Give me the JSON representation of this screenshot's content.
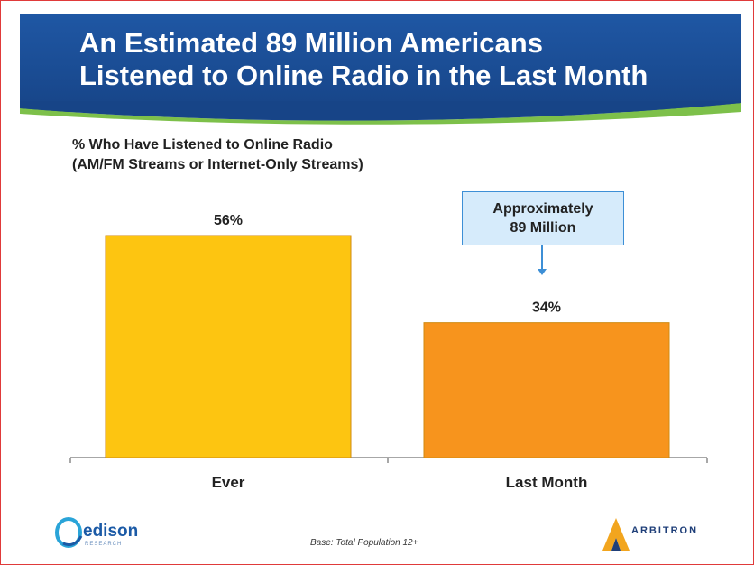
{
  "header": {
    "title_line1": "An Estimated 89 Million Americans",
    "title_line2": "Listened to Online Radio in the Last Month"
  },
  "subtitle": {
    "line1": "% Who Have Listened to Online Radio",
    "line2": "(AM/FM Streams or Internet-Only Streams)"
  },
  "callout": {
    "line1": "Approximately",
    "line2": "89 Million"
  },
  "footer": {
    "base_note": "Base:  Total Population 12+",
    "logo_left": "edison",
    "logo_left_sub": "RESEARCH",
    "logo_right": "ARBITRON"
  },
  "colors": {
    "header_blue": "#1a4c93",
    "swoosh_green": "#7dc04a",
    "bar_ever": "#fdc511",
    "bar_last_month": "#f7941d",
    "callout_fill": "#d6ebfb",
    "callout_border": "#3d8fd6"
  },
  "chart_data": {
    "type": "bar",
    "categories": [
      "Ever",
      "Last Month"
    ],
    "values": [
      56,
      34
    ],
    "value_labels": [
      "56%",
      "34%"
    ],
    "ylim": [
      0,
      60
    ],
    "grid": false,
    "legend": "none"
  }
}
